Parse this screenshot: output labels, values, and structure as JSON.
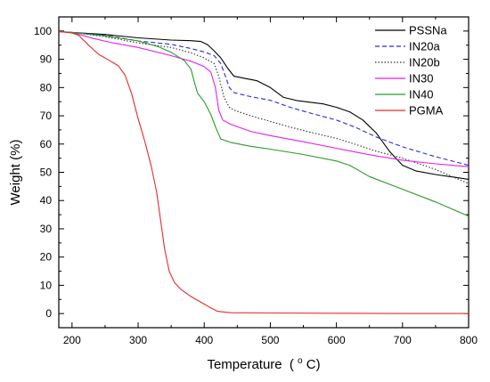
{
  "chart_data": {
    "type": "line",
    "xlabel": "Temperature",
    "xlabel_unit_prefix": "(",
    "xlabel_unit_sup": "o",
    "xlabel_unit_suffix": "C)",
    "ylabel": "Weight (%)",
    "xlim": [
      180,
      800
    ],
    "ylim": [
      -5,
      105
    ],
    "xticks": [
      200,
      300,
      400,
      500,
      600,
      700,
      800
    ],
    "yticks": [
      0,
      10,
      20,
      30,
      40,
      50,
      60,
      70,
      80,
      90,
      100
    ],
    "x_minor_step": 50,
    "y_minor_step": 5,
    "grid": false,
    "legend_position": "top-right",
    "series": [
      {
        "name": "PSSNa",
        "color": "#000000",
        "dash": "solid",
        "points": [
          [
            180,
            99.8
          ],
          [
            200,
            99.5
          ],
          [
            250,
            98.8
          ],
          [
            300,
            97.6
          ],
          [
            350,
            96.8
          ],
          [
            380,
            96.6
          ],
          [
            395,
            96.3
          ],
          [
            405,
            95.2
          ],
          [
            415,
            93
          ],
          [
            425,
            90.5
          ],
          [
            435,
            87
          ],
          [
            445,
            84
          ],
          [
            460,
            83.3
          ],
          [
            480,
            82.4
          ],
          [
            500,
            80
          ],
          [
            520,
            76.5
          ],
          [
            540,
            75.4
          ],
          [
            560,
            74.8
          ],
          [
            580,
            74.2
          ],
          [
            600,
            73
          ],
          [
            620,
            71.4
          ],
          [
            640,
            68.5
          ],
          [
            660,
            64
          ],
          [
            680,
            57.5
          ],
          [
            700,
            52.5
          ],
          [
            720,
            50.5
          ],
          [
            750,
            49.2
          ],
          [
            780,
            48.2
          ],
          [
            800,
            47.5
          ]
        ]
      },
      {
        "name": "IN20a",
        "color": "#2a2adf",
        "dash": "5,3",
        "points": [
          [
            180,
            99.8
          ],
          [
            200,
            99.5
          ],
          [
            250,
            98.5
          ],
          [
            300,
            96.5
          ],
          [
            350,
            95.3
          ],
          [
            380,
            93.8
          ],
          [
            400,
            92.6
          ],
          [
            415,
            91.3
          ],
          [
            425,
            88.5
          ],
          [
            432,
            84
          ],
          [
            438,
            80
          ],
          [
            445,
            78.2
          ],
          [
            470,
            76.8
          ],
          [
            500,
            75.5
          ],
          [
            530,
            73
          ],
          [
            560,
            71
          ],
          [
            600,
            68.5
          ],
          [
            630,
            65.8
          ],
          [
            660,
            62.5
          ],
          [
            700,
            59
          ],
          [
            750,
            55.5
          ],
          [
            800,
            52.5
          ]
        ]
      },
      {
        "name": "IN20b",
        "color": "#333333",
        "dash": "1.5,2",
        "points": [
          [
            180,
            99.8
          ],
          [
            200,
            99.5
          ],
          [
            250,
            98
          ],
          [
            300,
            95.8
          ],
          [
            350,
            94.2
          ],
          [
            380,
            92.3
          ],
          [
            400,
            90.5
          ],
          [
            415,
            88.5
          ],
          [
            422,
            84
          ],
          [
            430,
            76.5
          ],
          [
            438,
            73
          ],
          [
            445,
            72
          ],
          [
            470,
            70
          ],
          [
            500,
            68
          ],
          [
            530,
            66
          ],
          [
            560,
            64.2
          ],
          [
            600,
            62
          ],
          [
            630,
            59.8
          ],
          [
            660,
            57.5
          ],
          [
            700,
            55
          ],
          [
            750,
            51
          ],
          [
            800,
            46
          ]
        ]
      },
      {
        "name": "IN30",
        "color": "#e91ee6",
        "dash": "solid",
        "points": [
          [
            180,
            99.8
          ],
          [
            200,
            99.5
          ],
          [
            230,
            97.5
          ],
          [
            260,
            95.9
          ],
          [
            300,
            94.2
          ],
          [
            350,
            91.3
          ],
          [
            380,
            89.3
          ],
          [
            400,
            87.4
          ],
          [
            410,
            85.5
          ],
          [
            417,
            80
          ],
          [
            422,
            72
          ],
          [
            428,
            68.5
          ],
          [
            440,
            67
          ],
          [
            470,
            64.5
          ],
          [
            500,
            63
          ],
          [
            550,
            60.8
          ],
          [
            600,
            58.5
          ],
          [
            650,
            56.2
          ],
          [
            700,
            54.3
          ],
          [
            750,
            53
          ],
          [
            800,
            52
          ]
        ]
      },
      {
        "name": "IN40",
        "color": "#2a9a2a",
        "dash": "solid",
        "points": [
          [
            180,
            99.8
          ],
          [
            200,
            99.5
          ],
          [
            250,
            98.3
          ],
          [
            300,
            96.5
          ],
          [
            330,
            94.5
          ],
          [
            350,
            92.5
          ],
          [
            370,
            89.5
          ],
          [
            380,
            86.5
          ],
          [
            385,
            82
          ],
          [
            390,
            78
          ],
          [
            400,
            75
          ],
          [
            410,
            70.5
          ],
          [
            418,
            65.5
          ],
          [
            425,
            61.8
          ],
          [
            440,
            60.6
          ],
          [
            470,
            59.2
          ],
          [
            500,
            58.2
          ],
          [
            550,
            56.3
          ],
          [
            600,
            54
          ],
          [
            620,
            52.5
          ],
          [
            650,
            48.5
          ],
          [
            700,
            44
          ],
          [
            750,
            39.5
          ],
          [
            800,
            34.5
          ]
        ]
      },
      {
        "name": "PGMA",
        "color": "#e82a2a",
        "dash": "solid",
        "points": [
          [
            180,
            99.8
          ],
          [
            200,
            99.3
          ],
          [
            210,
            98.5
          ],
          [
            225,
            95
          ],
          [
            240,
            91.8
          ],
          [
            255,
            89.8
          ],
          [
            270,
            87.7
          ],
          [
            280,
            84.5
          ],
          [
            290,
            78
          ],
          [
            300,
            69
          ],
          [
            310,
            61
          ],
          [
            320,
            52
          ],
          [
            328,
            43
          ],
          [
            334,
            33
          ],
          [
            340,
            23
          ],
          [
            347,
            15
          ],
          [
            355,
            11
          ],
          [
            365,
            8.5
          ],
          [
            380,
            6
          ],
          [
            395,
            4
          ],
          [
            410,
            2
          ],
          [
            420,
            0.8
          ],
          [
            440,
            0.3
          ],
          [
            500,
            0.2
          ],
          [
            600,
            0.1
          ],
          [
            700,
            0
          ],
          [
            800,
            0
          ]
        ]
      }
    ]
  }
}
